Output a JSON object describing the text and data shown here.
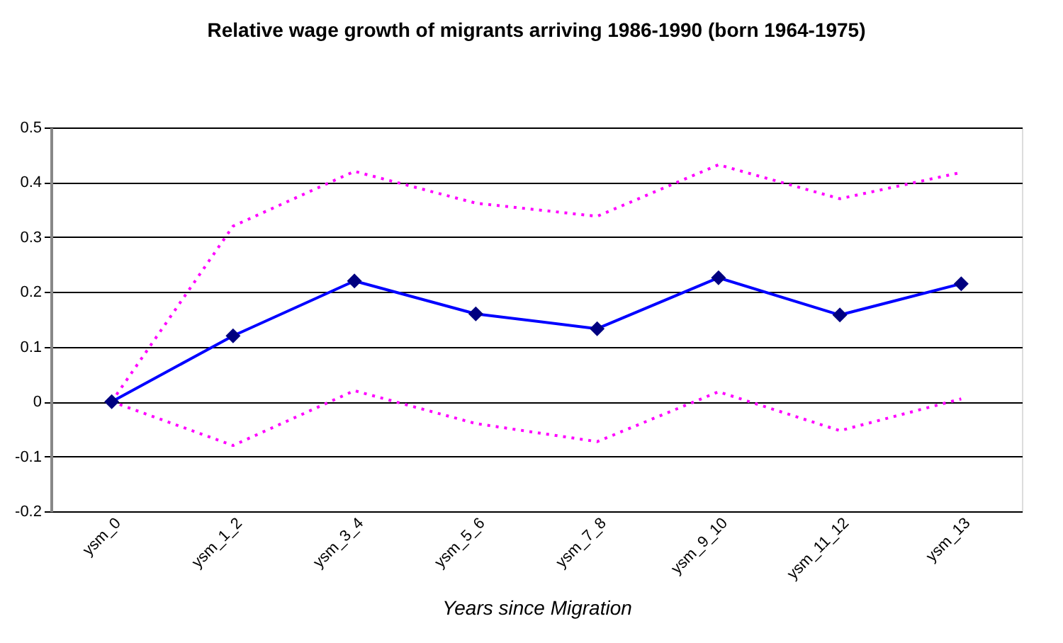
{
  "chart_data": {
    "type": "line",
    "title": "Relative wage growth of migrants arriving 1986-1990 (born 1964-1975)",
    "xlabel": "Years since Migration",
    "categories": [
      "ysm_0",
      "ysm_1_2",
      "ysm_3_4",
      "ysm_5_6",
      "ysm_7_8",
      "ysm_9_10",
      "ysm_11_12",
      "ysm_13"
    ],
    "series": [
      {
        "color": "#ff00ff",
        "line_style": "dotted",
        "marker": "none",
        "values": [
          0,
          0.32,
          0.42,
          0.362,
          0.338,
          0.432,
          0.37,
          0.418
        ]
      },
      {
        "color": "#ff00ff",
        "line_style": "dotted",
        "marker": "none",
        "values": [
          0,
          -0.08,
          0.02,
          -0.04,
          -0.073,
          0.018,
          -0.053,
          0.005
        ]
      },
      {
        "color": "#0000ff",
        "line_style": "solid",
        "marker": "diamond",
        "values": [
          0,
          0.12,
          0.22,
          0.16,
          0.133,
          0.226,
          0.158,
          0.215
        ]
      }
    ],
    "ylim": [
      -0.2,
      0.5
    ],
    "yticks": [
      -0.2,
      -0.1,
      0,
      0.1,
      0.2,
      0.3,
      0.4,
      0.5
    ],
    "grid": "y"
  }
}
